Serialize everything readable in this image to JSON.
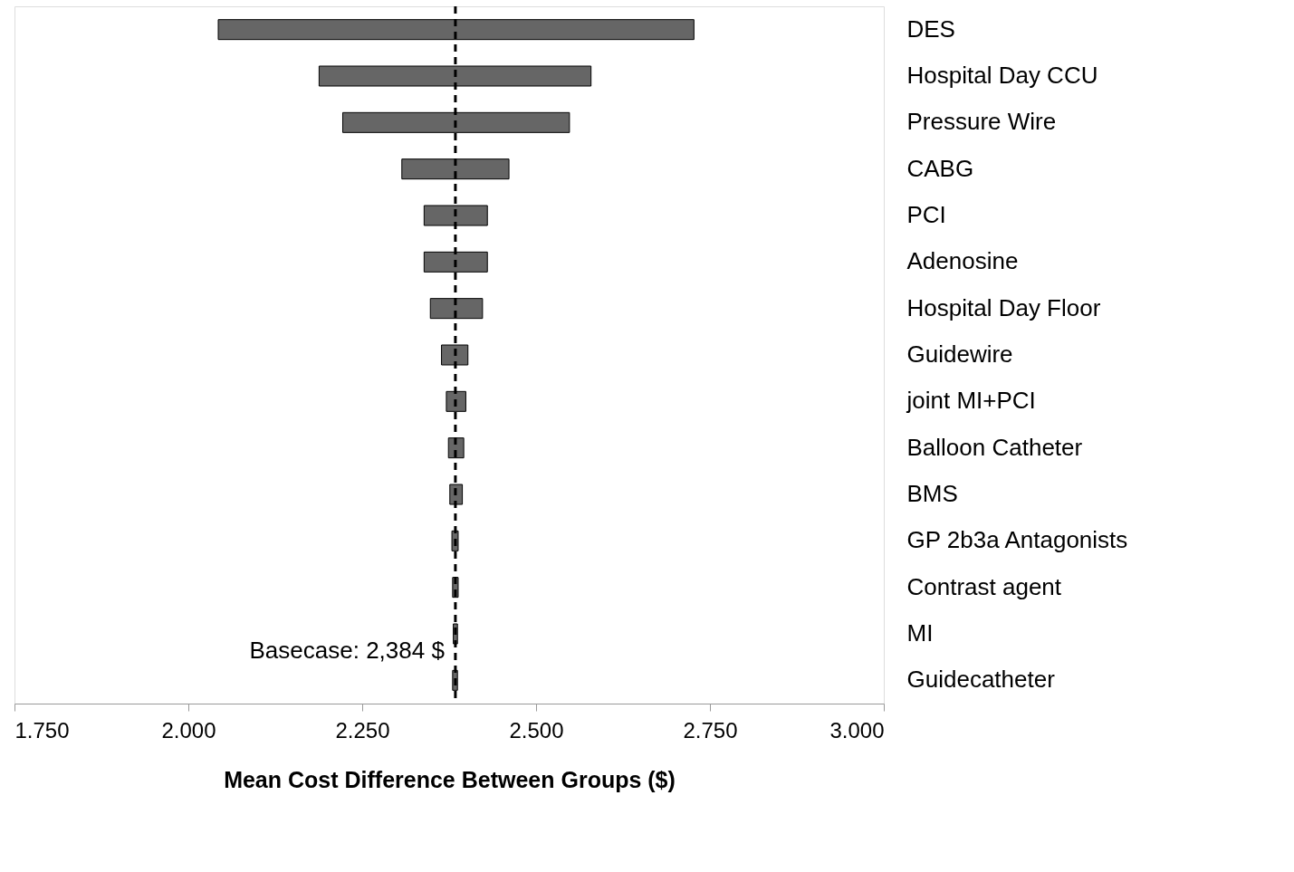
{
  "chart_data": {
    "type": "bar",
    "orientation": "horizontal",
    "xlabel": "Mean Cost Difference Between Groups ($)",
    "categories": [
      "DES",
      "Hospital Day CCU",
      "Pressure Wire",
      "CABG",
      "PCI",
      "Adenosine",
      "Hospital Day Floor",
      "Guidewire",
      "joint MI+PCI",
      "Balloon Catheter",
      "BMS",
      "GP 2b3a Antagonists",
      "Contrast agent",
      "MI",
      "Guidecatheter"
    ],
    "base": [
      2.043,
      2.188,
      2.222,
      2.307,
      2.339,
      2.339,
      2.348,
      2.364,
      2.371,
      2.374,
      2.376,
      2.379,
      2.38,
      2.381,
      2.38
    ],
    "values": [
      0.684,
      0.391,
      0.326,
      0.154,
      0.091,
      0.091,
      0.075,
      0.038,
      0.028,
      0.022,
      0.018,
      0.009,
      0.008,
      0.006,
      0.007
    ],
    "color": "#666666",
    "xlim": [
      1.75,
      3.0
    ],
    "xticks": [
      {
        "value": 1.75,
        "label": "1.750"
      },
      {
        "value": 2.0,
        "label": "2.000"
      },
      {
        "value": 2.25,
        "label": "2.250"
      },
      {
        "value": 2.5,
        "label": "2.500"
      },
      {
        "value": 2.75,
        "label": "2.750"
      },
      {
        "value": 3.0,
        "label": "3.000"
      }
    ],
    "ref_lines": [
      {
        "axis": "x",
        "value": 2.384,
        "label": "Basecase: 2,384 $",
        "color": "#000000",
        "line_style": "dashed"
      }
    ],
    "grid": false
  }
}
